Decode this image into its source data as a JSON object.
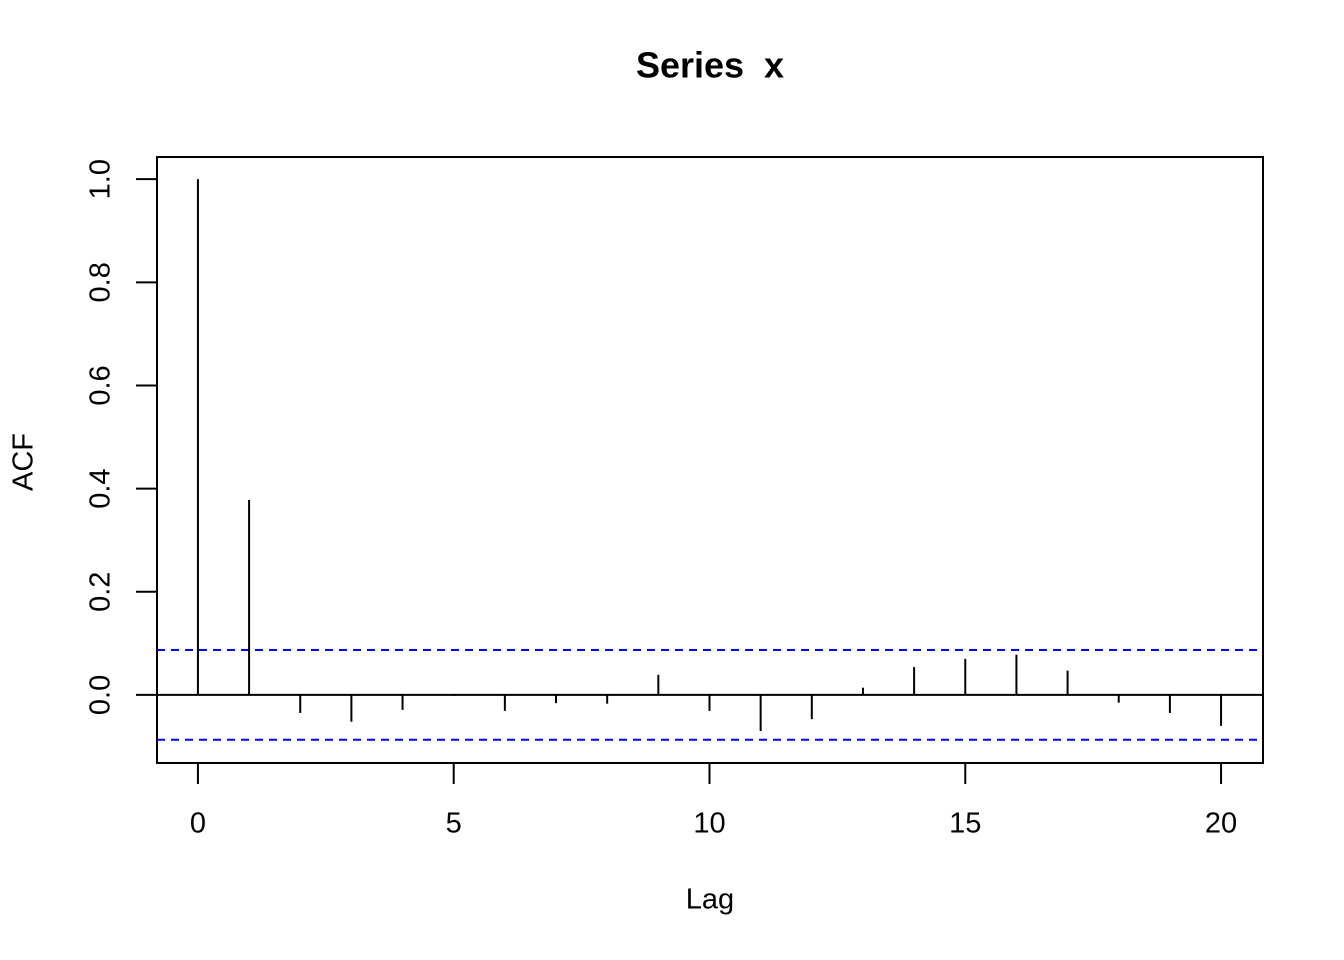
{
  "chart_data": {
    "type": "acf",
    "title": "Series  x",
    "x_label": "Lag",
    "y_label": "ACF",
    "x": [
      0,
      1,
      2,
      3,
      4,
      5,
      6,
      7,
      8,
      9,
      10,
      11,
      12,
      13,
      14,
      15,
      16,
      17,
      18,
      19,
      20
    ],
    "values": [
      1.0,
      0.378,
      -0.035,
      -0.052,
      -0.029,
      -0.002,
      -0.031,
      -0.016,
      -0.017,
      0.039,
      -0.031,
      -0.07,
      -0.047,
      0.014,
      0.054,
      0.07,
      0.078,
      0.047,
      -0.015,
      -0.035,
      -0.06
    ],
    "color": "#000000",
    "ci": [
      0.087,
      -0.087
    ],
    "ci_color": "#0000ff",
    "xlim": [
      -0.8,
      20.82
    ],
    "ylim": [
      -0.132,
      1.043
    ],
    "xticks": [
      0,
      5,
      10,
      15,
      20
    ],
    "yticks": [
      {
        "value": 0,
        "label": "0.0"
      },
      0.2,
      0.4,
      0.6,
      0.8,
      {
        "value": 1,
        "label": "1.0"
      }
    ]
  }
}
